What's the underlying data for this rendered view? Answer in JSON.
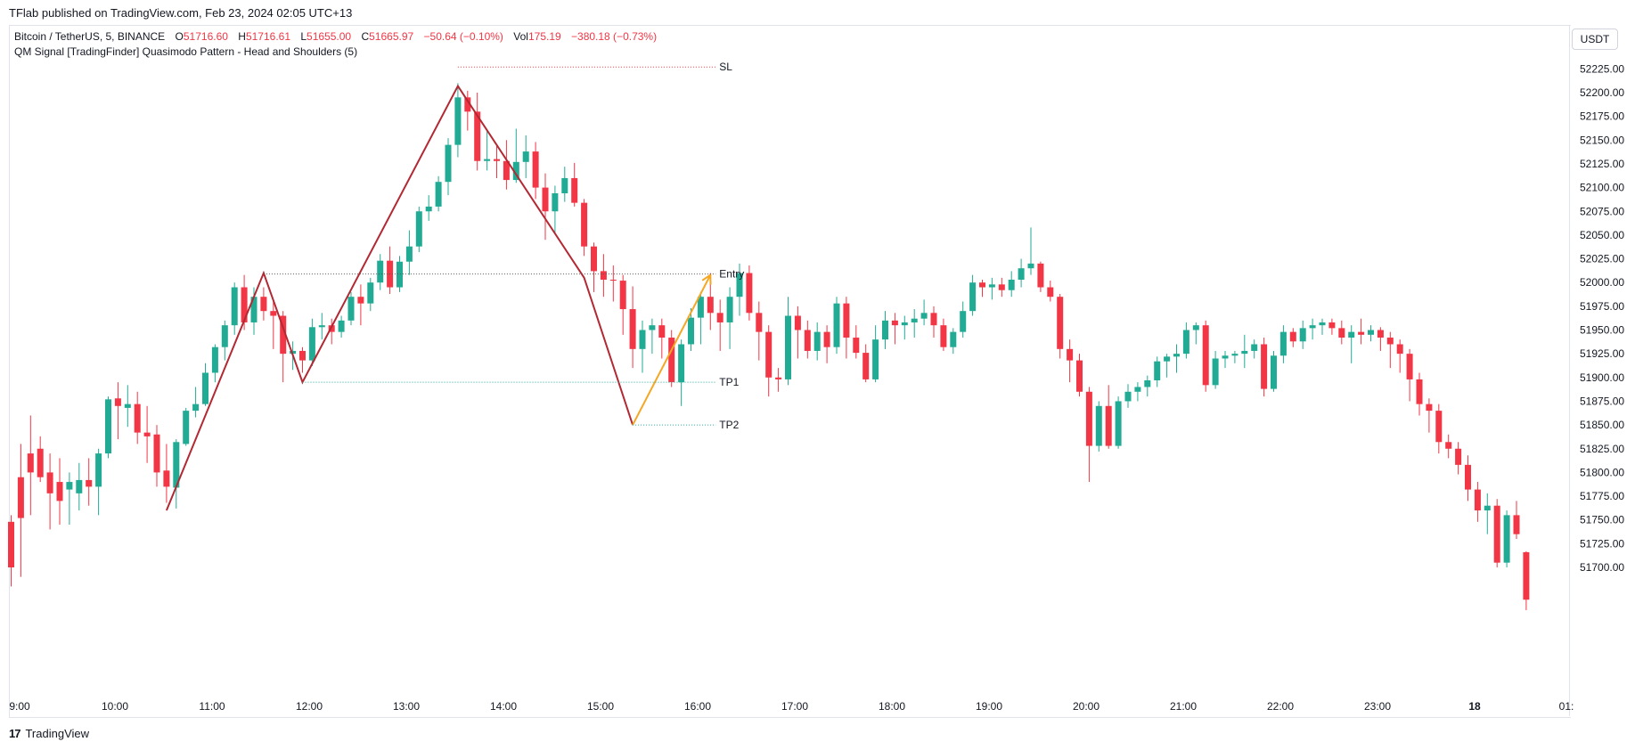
{
  "header": {
    "publisher": "TFlab published on TradingView.com, Feb 23, 2024 02:05 UTC+13",
    "symbol": "Bitcoin / TetherUS, 5, BINANCE",
    "o_label": "O",
    "o_value": "51716.60",
    "h_label": "H",
    "h_value": "51716.61",
    "l_label": "L",
    "l_value": "51655.00",
    "c_label": "C",
    "c_value": "51665.97",
    "change": "−50.64 (−0.10%)",
    "vol_label": "Vol",
    "vol_value": "175.19",
    "vol_change": "−380.18 (−0.73%)",
    "indicator": "QM Signal [TradingFinder] Quasimodo Pattern - Head and Shoulders (5)"
  },
  "currency_button": "USDT",
  "footer": {
    "logo": "17",
    "brand": "TradingView"
  },
  "colors": {
    "up": "#22ab94",
    "down": "#f23645",
    "pattern": "#b22833",
    "signal": "#f5a623",
    "grid": "#f0f3fa"
  },
  "chart_data": {
    "type": "candlestick",
    "symbol": "BTCUSDT",
    "timeframe_minutes": 5,
    "y_ticks": [
      "52225.00",
      "52200.00",
      "52175.00",
      "52150.00",
      "52125.00",
      "52100.00",
      "52075.00",
      "52050.00",
      "52025.00",
      "52000.00",
      "51975.00",
      "51950.00",
      "51925.00",
      "51900.00",
      "51875.00",
      "51850.00",
      "51825.00",
      "51800.00",
      "51775.00",
      "51750.00",
      "51725.00",
      "51700.00"
    ],
    "x_ticks": [
      "9:00",
      "10:00",
      "11:00",
      "12:00",
      "13:00",
      "14:00",
      "15:00",
      "16:00",
      "17:00",
      "18:00",
      "19:00",
      "20:00",
      "21:00",
      "22:00",
      "23:00",
      "18",
      "01:"
    ],
    "candles": [
      [
        51748,
        51755,
        51680,
        51700
      ],
      [
        51795,
        51830,
        51690,
        51752
      ],
      [
        51820,
        51860,
        51755,
        51800
      ],
      [
        51825,
        51838,
        51790,
        51795
      ],
      [
        51800,
        51820,
        51740,
        51778
      ],
      [
        51790,
        51815,
        51745,
        51770
      ],
      [
        51782,
        51800,
        51745,
        51790
      ],
      [
        51778,
        51810,
        51760,
        51792
      ],
      [
        51792,
        51815,
        51765,
        51785
      ],
      [
        51785,
        51825,
        51755,
        51820
      ],
      [
        51820,
        51880,
        51815,
        51877
      ],
      [
        51878,
        51895,
        51835,
        51870
      ],
      [
        51868,
        51892,
        51848,
        51872
      ],
      [
        51872,
        51885,
        51830,
        51842
      ],
      [
        51842,
        51870,
        51810,
        51838
      ],
      [
        51840,
        51850,
        51785,
        51800
      ],
      [
        51802,
        51830,
        51768,
        51785
      ],
      [
        51784,
        51835,
        51762,
        51832
      ],
      [
        51830,
        51868,
        51828,
        51865
      ],
      [
        51865,
        51890,
        51858,
        51872
      ],
      [
        51872,
        51915,
        51870,
        51905
      ],
      [
        51905,
        51935,
        51895,
        51932
      ],
      [
        51932,
        51960,
        51918,
        51955
      ],
      [
        51955,
        52000,
        51945,
        51995
      ],
      [
        51995,
        52008,
        51950,
        51958
      ],
      [
        51958,
        51995,
        51945,
        51985
      ],
      [
        51985,
        51995,
        51960,
        51970
      ],
      [
        51970,
        51980,
        51930,
        51965
      ],
      [
        51965,
        51970,
        51895,
        51925
      ],
      [
        51925,
        51938,
        51908,
        51928
      ],
      [
        51928,
        51932,
        51905,
        51918
      ],
      [
        51918,
        51962,
        51912,
        51953
      ],
      [
        51953,
        51968,
        51940,
        51955
      ],
      [
        51955,
        51962,
        51935,
        51948
      ],
      [
        51948,
        51965,
        51942,
        51960
      ],
      [
        51960,
        51990,
        51955,
        51985
      ],
      [
        51985,
        51998,
        51955,
        51978
      ],
      [
        51978,
        52005,
        51970,
        52000
      ],
      [
        52000,
        52030,
        51992,
        52023
      ],
      [
        52023,
        52038,
        51988,
        51995
      ],
      [
        51995,
        52028,
        51990,
        52022
      ],
      [
        52022,
        52055,
        52008,
        52038
      ],
      [
        52038,
        52080,
        52032,
        52075
      ],
      [
        52075,
        52092,
        52065,
        52080
      ],
      [
        52080,
        52112,
        52075,
        52106
      ],
      [
        52106,
        52152,
        52092,
        52145
      ],
      [
        52145,
        52210,
        52132,
        52195
      ],
      [
        52195,
        52202,
        52160,
        52180
      ],
      [
        52180,
        52200,
        52118,
        52128
      ],
      [
        52128,
        52160,
        52118,
        52130
      ],
      [
        52130,
        52145,
        52110,
        52128
      ],
      [
        52128,
        52150,
        52098,
        52108
      ],
      [
        52108,
        52162,
        52105,
        52127
      ],
      [
        52127,
        52155,
        52110,
        52138
      ],
      [
        52138,
        52148,
        52088,
        52100
      ],
      [
        52100,
        52115,
        52045,
        52075
      ],
      [
        52075,
        52102,
        52052,
        52094
      ],
      [
        52094,
        52122,
        52085,
        52110
      ],
      [
        52110,
        52126,
        52080,
        52084
      ],
      [
        52084,
        52088,
        52028,
        52038
      ],
      [
        52038,
        52042,
        51990,
        52012
      ],
      [
        52012,
        52030,
        51985,
        52003
      ],
      [
        52003,
        52018,
        51980,
        52002
      ],
      [
        52002,
        52008,
        51945,
        51972
      ],
      [
        51972,
        51996,
        51910,
        51930
      ],
      [
        51930,
        51960,
        51905,
        51950
      ],
      [
        51950,
        51962,
        51925,
        51955
      ],
      [
        51955,
        51962,
        51920,
        51942
      ],
      [
        51942,
        51950,
        51890,
        51895
      ],
      [
        51895,
        51940,
        51870,
        51935
      ],
      [
        51935,
        51973,
        51928,
        51963
      ],
      [
        51963,
        51990,
        51935,
        51985
      ],
      [
        51985,
        52010,
        51950,
        51968
      ],
      [
        51968,
        51982,
        51928,
        51958
      ],
      [
        51958,
        51995,
        51930,
        51985
      ],
      [
        51985,
        52020,
        51965,
        52010
      ],
      [
        52010,
        52018,
        51960,
        51968
      ],
      [
        51968,
        51980,
        51918,
        51948
      ],
      [
        51948,
        51955,
        51880,
        51900
      ],
      [
        51900,
        51910,
        51885,
        51898
      ],
      [
        51898,
        51985,
        51892,
        51965
      ],
      [
        51965,
        51975,
        51920,
        51950
      ],
      [
        51950,
        51960,
        51920,
        51928
      ],
      [
        51928,
        51958,
        51918,
        51948
      ],
      [
        51948,
        51955,
        51915,
        51932
      ],
      [
        51932,
        51985,
        51925,
        51978
      ],
      [
        51978,
        51985,
        51920,
        51942
      ],
      [
        51942,
        51955,
        51920,
        51926
      ],
      [
        51926,
        51935,
        51895,
        51898
      ],
      [
        51898,
        51955,
        51895,
        51940
      ],
      [
        51940,
        51970,
        51930,
        51960
      ],
      [
        51960,
        51968,
        51935,
        51955
      ],
      [
        51955,
        51965,
        51940,
        51958
      ],
      [
        51958,
        51972,
        51942,
        51962
      ],
      [
        51962,
        51982,
        51955,
        51968
      ],
      [
        51968,
        51975,
        51942,
        51955
      ],
      [
        51955,
        51962,
        51928,
        51932
      ],
      [
        51932,
        51952,
        51925,
        51948
      ],
      [
        51948,
        51980,
        51942,
        51970
      ],
      [
        51970,
        52008,
        51965,
        52000
      ],
      [
        52000,
        52003,
        51985,
        51995
      ],
      [
        51995,
        52005,
        51982,
        51998
      ],
      [
        51998,
        52005,
        51985,
        51992
      ],
      [
        51992,
        52012,
        51985,
        52003
      ],
      [
        52003,
        52025,
        51995,
        52015
      ],
      [
        52015,
        52058,
        52008,
        52020
      ],
      [
        52020,
        52022,
        51990,
        51995
      ],
      [
        51995,
        52002,
        51980,
        51985
      ],
      [
        51985,
        51988,
        51920,
        51930
      ],
      [
        51930,
        51940,
        51895,
        51918
      ],
      [
        51918,
        51925,
        51880,
        51885
      ],
      [
        51885,
        51890,
        51790,
        51828
      ],
      [
        51828,
        51875,
        51822,
        51870
      ],
      [
        51870,
        51892,
        51825,
        51828
      ],
      [
        51828,
        51880,
        51825,
        51875
      ],
      [
        51875,
        51893,
        51868,
        51885
      ],
      [
        51885,
        51895,
        51875,
        51890
      ],
      [
        51890,
        51902,
        51880,
        51897
      ],
      [
        51897,
        51922,
        51890,
        51917
      ],
      [
        51917,
        51925,
        51900,
        51922
      ],
      [
        51922,
        51935,
        51905,
        51925
      ],
      [
        51925,
        51958,
        51920,
        51950
      ],
      [
        51950,
        51958,
        51935,
        51955
      ],
      [
        51955,
        51960,
        51885,
        51892
      ],
      [
        51892,
        51928,
        51888,
        51920
      ],
      [
        51920,
        51928,
        51910,
        51923
      ],
      [
        51923,
        51928,
        51915,
        51925
      ],
      [
        51925,
        51945,
        51910,
        51928
      ],
      [
        51928,
        51940,
        51920,
        51935
      ],
      [
        51935,
        51942,
        51880,
        51888
      ],
      [
        51888,
        51928,
        51885,
        51923
      ],
      [
        51923,
        51955,
        51915,
        51948
      ],
      [
        51948,
        51952,
        51932,
        51938
      ],
      [
        51938,
        51960,
        51930,
        51952
      ],
      [
        51952,
        51962,
        51940,
        51955
      ],
      [
        51955,
        51962,
        51945,
        51958
      ],
      [
        51958,
        51962,
        51945,
        51952
      ],
      [
        51952,
        51960,
        51935,
        51942
      ],
      [
        51942,
        51955,
        51915,
        51948
      ],
      [
        51948,
        51962,
        51935,
        51945
      ],
      [
        51945,
        51955,
        51938,
        51950
      ],
      [
        51950,
        51953,
        51928,
        51942
      ],
      [
        51942,
        51948,
        51910,
        51935
      ],
      [
        51935,
        51940,
        51905,
        51925
      ],
      [
        51925,
        51930,
        51875,
        51898
      ],
      [
        51898,
        51905,
        51860,
        51872
      ],
      [
        51872,
        51878,
        51842,
        51865
      ],
      [
        51865,
        51872,
        51820,
        51832
      ],
      [
        51832,
        51840,
        51815,
        51825
      ],
      [
        51825,
        51832,
        51798,
        51808
      ],
      [
        51808,
        51818,
        51770,
        51782
      ],
      [
        51782,
        51790,
        51748,
        51760
      ],
      [
        51760,
        51778,
        51735,
        51765
      ],
      [
        51765,
        51772,
        51700,
        51705
      ],
      [
        51705,
        51760,
        51700,
        51755
      ],
      [
        51755,
        51770,
        51730,
        51735
      ],
      [
        51716,
        51717,
        51655,
        51666
      ]
    ]
  },
  "annotations": {
    "sl_label": "SL",
    "entry_label": "Entry",
    "tp1_label": "TP1",
    "tp2_label": "TP2",
    "sl_price": 52227,
    "entry_price": 52009,
    "tp1_price": 51895,
    "tp2_price": 51850,
    "pattern_points": [
      [
        16,
        51760
      ],
      [
        26,
        52010
      ],
      [
        30,
        51895
      ],
      [
        46,
        52207
      ],
      [
        59,
        52005
      ],
      [
        64,
        51850
      ]
    ],
    "signal_points": [
      [
        64,
        51850
      ],
      [
        72,
        52008
      ]
    ],
    "sl_start_index": 46,
    "level_end_index": 72
  }
}
